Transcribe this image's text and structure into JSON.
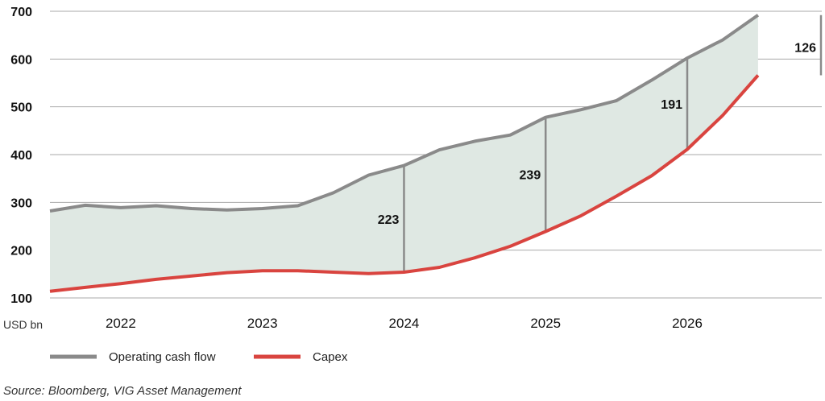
{
  "chart_data": {
    "type": "area",
    "unit_label": "USD bn",
    "ylim": [
      100,
      700
    ],
    "yticks": [
      100,
      200,
      300,
      400,
      500,
      600,
      700
    ],
    "xlim": [
      2021.5,
      2026.95
    ],
    "xticks": [
      "2022",
      "2023",
      "2024",
      "2025",
      "2026"
    ],
    "grid": true,
    "legend_position": "bottom-left",
    "series": [
      {
        "name": "Operating cash flow",
        "color": "#8a8a8a",
        "x": [
          2021.5,
          2021.75,
          2022.0,
          2022.25,
          2022.5,
          2022.75,
          2023.0,
          2023.25,
          2023.5,
          2023.75,
          2024.0,
          2024.25,
          2024.5,
          2024.75,
          2025.0,
          2025.25,
          2025.5,
          2025.75,
          2026.0,
          2026.25,
          2026.5
        ],
        "values": [
          282,
          294,
          289,
          293,
          287,
          284,
          287,
          293,
          320,
          357,
          377,
          410,
          428,
          441,
          478,
          494,
          513,
          556,
          602,
          640,
          692
        ]
      },
      {
        "name": "Capex",
        "color": "#d9443f",
        "x": [
          2021.5,
          2021.75,
          2022.0,
          2022.25,
          2022.5,
          2022.75,
          2023.0,
          2023.25,
          2023.5,
          2023.75,
          2024.0,
          2024.25,
          2024.5,
          2024.75,
          2025.0,
          2025.25,
          2025.5,
          2025.75,
          2026.0,
          2026.25,
          2026.5
        ],
        "values": [
          114,
          122,
          130,
          139,
          146,
          153,
          157,
          157,
          154,
          151,
          154,
          164,
          184,
          208,
          239,
          272,
          313,
          356,
          411,
          482,
          566
        ]
      }
    ],
    "fill_color": "#dfe8e3",
    "annotations": [
      {
        "x": 2024.0,
        "label": "223"
      },
      {
        "x": 2025.0,
        "label": "239"
      },
      {
        "x": 2026.0,
        "label": "191"
      },
      {
        "x": 2026.5,
        "label": "126"
      }
    ],
    "source": "Source: Bloomberg, VIG Asset Management"
  }
}
